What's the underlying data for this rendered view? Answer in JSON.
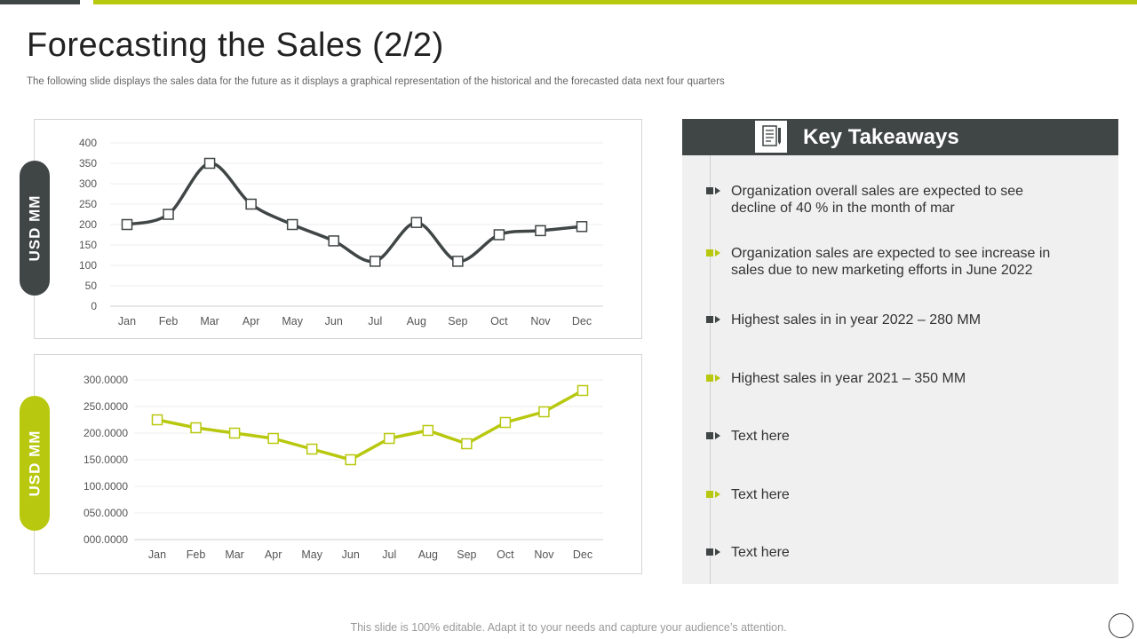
{
  "slide": {
    "title": "Forecasting the Sales (2/2)",
    "subtitle": "The following slide displays the sales data for the future as it displays a graphical representation of the historical and the forecasted data next four quarters",
    "footer": "This slide is 100% editable. Adapt it to your needs and capture your audience’s attention."
  },
  "colors": {
    "dark": "#404546",
    "lime": "#b8c80e",
    "panel": "#f0f0f0"
  },
  "pills": {
    "top": "USD MM",
    "bottom": "USD MM"
  },
  "chart_data": [
    {
      "type": "line",
      "categories": [
        "Jan",
        "Feb",
        "Mar",
        "Apr",
        "May",
        "Jun",
        "Jul",
        "Aug",
        "Sep",
        "Oct",
        "Nov",
        "Dec"
      ],
      "series": [
        {
          "values": [
            200,
            225,
            350,
            250,
            200,
            160,
            110,
            205,
            110,
            175,
            185,
            195
          ],
          "color": "#404546"
        }
      ],
      "yticks": [
        "0",
        "50",
        "100",
        "150",
        "200",
        "250",
        "300",
        "350",
        "400"
      ],
      "ylim": [
        0,
        400
      ],
      "smooth": true,
      "grid": true,
      "ylabel": "USD MM"
    },
    {
      "type": "line",
      "categories": [
        "Jan",
        "Feb",
        "Mar",
        "Apr",
        "May",
        "Jun",
        "Jul",
        "Aug",
        "Sep",
        "Oct",
        "Nov",
        "Dec"
      ],
      "series": [
        {
          "values": [
            225,
            210,
            200,
            190,
            170,
            150,
            190,
            205,
            180,
            220,
            240,
            280
          ],
          "color": "#b8c80e"
        }
      ],
      "yticks": [
        "000.0000",
        "050.0000",
        "100.0000",
        "150.0000",
        "200.0000",
        "250.0000",
        "300.0000"
      ],
      "ylim": [
        0,
        300
      ],
      "smooth": false,
      "grid": true,
      "ylabel": "USD MM"
    }
  ],
  "takeaways": {
    "title": "Key Takeaways",
    "icon": "document-pen-icon",
    "items": [
      {
        "lines": [
          "Organization overall sales are expected to see",
          "decline of 40 % in the month of mar"
        ],
        "color": "#404546"
      },
      {
        "lines": [
          "Organization sales are expected to see increase in",
          "sales due to new marketing efforts in June 2022"
        ],
        "color": "#b8c80e"
      },
      {
        "lines": [
          "Highest sales in in year 2022 – 280 MM"
        ],
        "color": "#404546"
      },
      {
        "lines": [
          "Highest sales in year 2021 – 350 MM"
        ],
        "color": "#b8c80e"
      },
      {
        "lines": [
          "Text here"
        ],
        "color": "#404546"
      },
      {
        "lines": [
          "Text here"
        ],
        "color": "#b8c80e"
      },
      {
        "lines": [
          "Text here"
        ],
        "color": "#404546"
      }
    ]
  }
}
